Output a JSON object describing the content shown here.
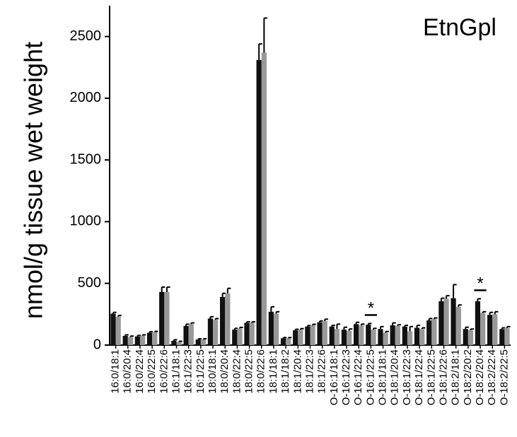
{
  "chart_data": {
    "type": "bar",
    "title": "EtnGpl",
    "y_label": "nmol/g tissue wet weight",
    "categories": [
      "16:0/18:1",
      "16:0/20:4",
      "16:0/22:4",
      "16:0/22:5",
      "16:0/22:6",
      "16:1/18:1",
      "16:1/22:3",
      "16:1/22:5",
      "18:0/18:1",
      "18:0/20:4",
      "18:0/22:4",
      "18:0/22:5",
      "18:0/22:6",
      "18:1/18:1",
      "18:1/18:2",
      "18:1/20:4",
      "18:1/22:3",
      "18:1/22:6",
      "O-16:1/18:1",
      "O-16:1/22:3",
      "O-16:1/22:4",
      "O-16:1/22:5",
      "O-18:1/18:1",
      "O-18:1/20:4",
      "O-18:1/22:3",
      "O-18:1/22:4",
      "O-18:1/22:5",
      "O-18:1/22:6",
      "O-18:2/18:1",
      "O-18:2/20:2",
      "O-18:2/20:4",
      "O-18:2/22:4",
      "O-18:2/22:5"
    ],
    "series": [
      {
        "color": "#111111",
        "values": [
          255,
          75,
          70,
          100,
          430,
          35,
          155,
          45,
          215,
          390,
          125,
          180,
          2310,
          270,
          55,
          120,
          150,
          185,
          150,
          125,
          170,
          165,
          130,
          160,
          150,
          140,
          200,
          355,
          380,
          130,
          355,
          245,
          130
        ],
        "errors": [
          10,
          8,
          8,
          8,
          40,
          8,
          15,
          6,
          15,
          30,
          10,
          8,
          130,
          40,
          6,
          8,
          8,
          10,
          10,
          20,
          15,
          10,
          20,
          20,
          10,
          20,
          15,
          25,
          110,
          15,
          20,
          20,
          10
        ]
      },
      {
        "color": "#999999",
        "values": [
          230,
          65,
          75,
          105,
          430,
          25,
          170,
          45,
          205,
          420,
          135,
          180,
          2370,
          255,
          55,
          125,
          160,
          195,
          130,
          115,
          160,
          125,
          100,
          155,
          110,
          130,
          210,
          375,
          310,
          120,
          260,
          250,
          140
        ],
        "errors": [
          10,
          8,
          8,
          6,
          40,
          6,
          10,
          6,
          10,
          40,
          8,
          8,
          280,
          15,
          6,
          8,
          8,
          15,
          40,
          15,
          10,
          10,
          10,
          10,
          40,
          10,
          10,
          25,
          15,
          10,
          10,
          20,
          10
        ]
      }
    ],
    "annotations": [
      {
        "text": "*",
        "category": "O-16:1/22:5"
      },
      {
        "text": "*",
        "category": "O-18:2/20:4"
      }
    ],
    "ylim": [
      0,
      2750
    ],
    "yticks": [
      0,
      500,
      1000,
      1500,
      2000,
      2500
    ],
    "grid": false
  }
}
